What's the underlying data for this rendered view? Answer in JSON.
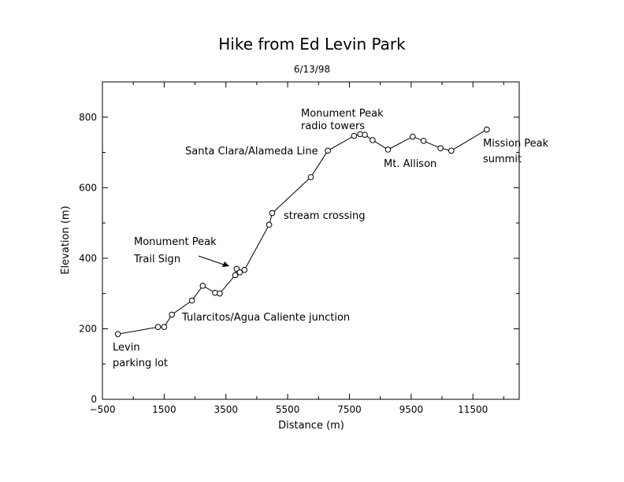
{
  "chart_data": {
    "type": "line",
    "title": "Hike from Ed Levin Park",
    "subtitle": "6/13/98",
    "xlabel": "Distance (m)",
    "ylabel": "Elevation (m)",
    "xlim": [
      -500,
      13000
    ],
    "ylim": [
      0,
      900
    ],
    "x_ticks": [
      -500,
      1500,
      3500,
      5500,
      7500,
      9500,
      11500
    ],
    "x_tick_labels": [
      "−500",
      "1500",
      "3500",
      "5500",
      "7500",
      "9500",
      "11500"
    ],
    "y_ticks": [
      0,
      200,
      400,
      600,
      800
    ],
    "y_tick_labels": [
      "0",
      "200",
      "400",
      "600",
      "800"
    ],
    "grid": false,
    "marker": "open-circle",
    "series": [
      {
        "x": [
          0,
          1300,
          1500,
          1750,
          2400,
          2750,
          3150,
          3300,
          3800,
          3850,
          3950,
          4100,
          4900,
          5000,
          6250,
          6800,
          7650,
          7850,
          8000,
          8250,
          8750,
          9550,
          9900,
          10450,
          10800,
          11950
        ],
        "y": [
          185,
          205,
          205,
          240,
          280,
          322,
          302,
          300,
          352,
          370,
          360,
          367,
          495,
          528,
          630,
          705,
          747,
          752,
          750,
          735,
          708,
          745,
          733,
          712,
          705,
          765
        ]
      }
    ],
    "annotations": [
      {
        "lines": [
          "Levin",
          "parking lot"
        ]
      },
      {
        "lines": [
          "Tularcitos/Agua Caliente junction"
        ]
      },
      {
        "lines": [
          "Monument Peak",
          "Trail Sign"
        ]
      },
      {
        "lines": [
          "stream crossing"
        ]
      },
      {
        "lines": [
          "Santa Clara/Alameda Line"
        ]
      },
      {
        "lines": [
          "Monument Peak",
          "radio towers"
        ]
      },
      {
        "lines": [
          "Mt. Allison"
        ]
      },
      {
        "lines": [
          "Mission Peak",
          "summit"
        ]
      }
    ]
  }
}
